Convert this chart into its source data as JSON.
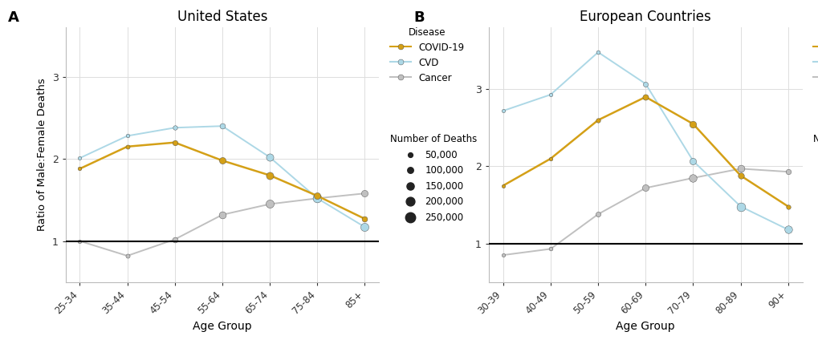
{
  "panel_A": {
    "title": "United States",
    "age_groups": [
      "25-34",
      "35-44",
      "45-54",
      "55-64",
      "65-74",
      "75-84",
      "85+"
    ],
    "covid": {
      "ratios": [
        1.88,
        2.15,
        2.2,
        1.98,
        1.8,
        1.55,
        1.27
      ],
      "deaths": [
        15000,
        30000,
        70000,
        120000,
        150000,
        120000,
        80000
      ]
    },
    "cvd": {
      "ratios": [
        2.01,
        2.28,
        2.38,
        2.4,
        2.02,
        1.52,
        1.17
      ],
      "deaths": [
        8000,
        15000,
        40000,
        80000,
        150000,
        200000,
        180000
      ]
    },
    "cancer": {
      "ratios": [
        1.0,
        0.82,
        1.02,
        1.32,
        1.45,
        1.52,
        1.58
      ],
      "deaths": [
        15000,
        30000,
        80000,
        140000,
        180000,
        160000,
        120000
      ]
    }
  },
  "panel_B": {
    "title": "European Countries",
    "age_groups": [
      "30-39",
      "40-49",
      "50-59",
      "60-69",
      "70-79",
      "80-89",
      "90+"
    ],
    "covid": {
      "ratios": [
        1.75,
        2.1,
        2.6,
        2.9,
        2.55,
        1.88,
        1.48
      ],
      "deaths": [
        5000,
        15000,
        40000,
        90000,
        130000,
        100000,
        40000
      ]
    },
    "cvd": {
      "ratios": [
        2.72,
        2.93,
        3.48,
        3.07,
        2.07,
        1.48,
        1.18
      ],
      "deaths": [
        4000,
        8000,
        20000,
        60000,
        120000,
        200000,
        160000
      ]
    },
    "cancer": {
      "ratios": [
        0.85,
        0.93,
        1.38,
        1.72,
        1.85,
        1.97,
        1.93
      ],
      "deaths": [
        8000,
        20000,
        60000,
        120000,
        160000,
        140000,
        70000
      ]
    }
  },
  "colors": {
    "covid": "#D4A017",
    "cvd": "#ADD8E6",
    "cancer": "#C0C0C0"
  },
  "legend_sizes": [
    50000,
    100000,
    150000,
    200000,
    250000
  ],
  "ylabel": "Ratio of Male:Female Deaths",
  "xlabel": "Age Group",
  "ylim_A": [
    0.5,
    3.6
  ],
  "ylim_B": [
    0.5,
    3.8
  ],
  "yticks_A": [
    1,
    2,
    3
  ],
  "yticks_B": [
    1,
    2,
    3
  ],
  "ref_line": 1.0,
  "background_color": "#ffffff",
  "grid_color": "#dddddd"
}
